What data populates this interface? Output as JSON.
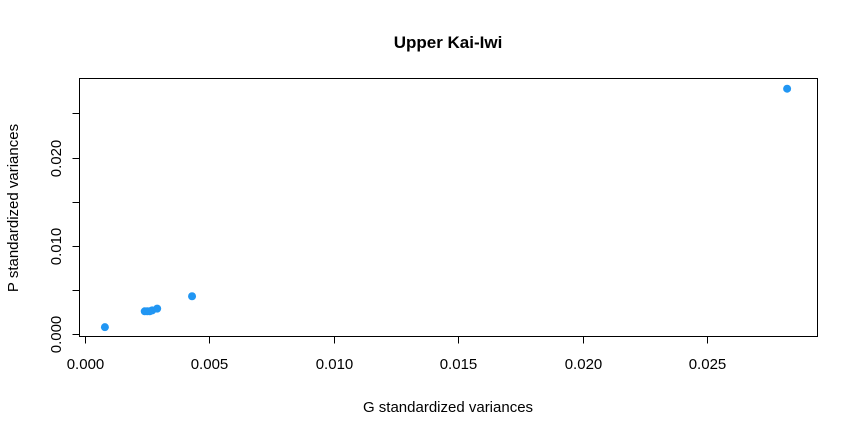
{
  "chart_data": {
    "type": "scatter",
    "title": "Upper Kai-Iwi",
    "xlabel": "G standardized variances",
    "ylabel": "P standardized variances",
    "xlim": [
      -0.0002,
      0.0294
    ],
    "ylim": [
      -0.0002,
      0.0289
    ],
    "x_ticks": [
      0.0,
      0.005,
      0.01,
      0.015,
      0.02,
      0.025
    ],
    "x_tick_labels": [
      "0.000",
      "0.005",
      "0.010",
      "0.015",
      "0.020",
      "0.025"
    ],
    "y_ticks": [
      0.0,
      0.005,
      0.01,
      0.015,
      0.02,
      0.025
    ],
    "y_tick_labels": [
      "0.000",
      "",
      "0.010",
      "",
      "0.020",
      ""
    ],
    "grid": false,
    "point_color": "#2196f3",
    "series": [
      {
        "x": [
          0.0008,
          0.0024,
          0.0025,
          0.0026,
          0.0027,
          0.0029,
          0.0043,
          0.0282
        ],
        "y": [
          0.0008,
          0.0026,
          0.0026,
          0.0026,
          0.0027,
          0.0029,
          0.0043,
          0.0278
        ]
      }
    ]
  }
}
